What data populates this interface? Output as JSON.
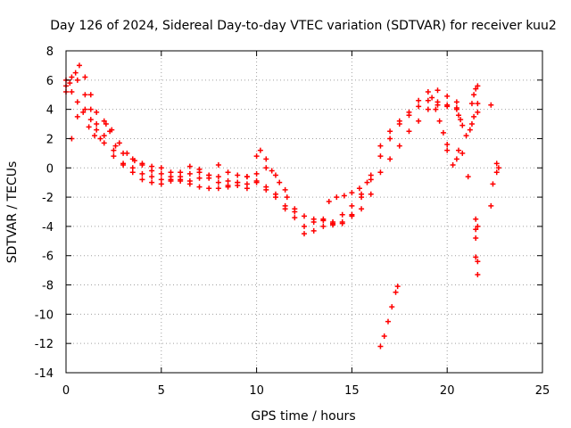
{
  "chart_data": {
    "type": "scatter",
    "title": "Day 126 of 2024, Sidereal Day-to-day VTEC variation (SDTVAR) for receiver kuu2",
    "xlabel": "GPS time / hours",
    "ylabel": "SDTVAR / TECUs",
    "xlim": [
      0,
      25
    ],
    "ylim": [
      -14,
      8
    ],
    "xticks": [
      0,
      5,
      10,
      15,
      20,
      25
    ],
    "yticks": [
      -14,
      -12,
      -10,
      -8,
      -6,
      -4,
      -2,
      0,
      2,
      4,
      6,
      8
    ],
    "grid": true,
    "marker": "+",
    "series_color": "#ff0000",
    "series": [
      {
        "name": "SDTVAR",
        "tracks": [
          [
            [
              0.0,
              5.2
            ],
            [
              0.2,
              5.8
            ],
            [
              0.5,
              6.5
            ],
            [
              0.7,
              7.0
            ],
            [
              1.0,
              6.2
            ],
            [
              1.3,
              5.0
            ],
            [
              1.6,
              3.8
            ],
            [
              2.0,
              3.2
            ],
            [
              2.3,
              2.5
            ],
            [
              2.6,
              1.5
            ],
            [
              3.0,
              1.0
            ],
            [
              3.5,
              0.6
            ],
            [
              4.0,
              0.3
            ],
            [
              4.5,
              0.1
            ],
            [
              5.0,
              0.0
            ],
            [
              5.5,
              -0.3
            ],
            [
              6.0,
              -0.8
            ],
            [
              6.5,
              -0.9
            ],
            [
              7.0,
              -0.7
            ],
            [
              7.5,
              -0.5
            ],
            [
              8.0,
              0.2
            ],
            [
              8.5,
              -0.3
            ],
            [
              9.0,
              -0.5
            ],
            [
              9.5,
              -0.6
            ],
            [
              10.0,
              0.8
            ],
            [
              10.5,
              0.0
            ],
            [
              11.0,
              -0.5
            ],
            [
              11.5,
              -1.5
            ],
            [
              12.0,
              -2.8
            ],
            [
              12.5,
              -3.3
            ],
            [
              13.0,
              -3.5
            ],
            [
              13.5,
              -3.6
            ],
            [
              14.0,
              -3.8
            ],
            [
              14.5,
              -3.7
            ],
            [
              15.0,
              -3.2
            ],
            [
              15.5,
              -2.0
            ],
            [
              16.0,
              -0.5
            ],
            [
              16.5,
              1.5
            ],
            [
              17.0,
              2.5
            ],
            [
              17.5,
              3.2
            ],
            [
              18.0,
              3.8
            ],
            [
              18.5,
              4.6
            ],
            [
              19.0,
              5.2
            ],
            [
              19.5,
              5.3
            ],
            [
              20.0,
              4.9
            ],
            [
              20.5,
              4.5
            ]
          ],
          [
            [
              0.0,
              6.0
            ],
            [
              0.3,
              6.2
            ],
            [
              0.6,
              6.0
            ],
            [
              1.0,
              5.0
            ],
            [
              1.3,
              4.0
            ],
            [
              1.6,
              3.0
            ],
            [
              2.0,
              2.2
            ],
            [
              2.5,
              1.2
            ],
            [
              3.0,
              0.3
            ],
            [
              3.5,
              0.0
            ],
            [
              4.0,
              -0.4
            ],
            [
              4.5,
              -0.6
            ],
            [
              5.0,
              -0.8
            ],
            [
              5.5,
              -0.8
            ],
            [
              6.0,
              -0.9
            ],
            [
              6.5,
              -1.1
            ],
            [
              7.0,
              -1.3
            ],
            [
              7.5,
              -1.4
            ],
            [
              8.0,
              -1.4
            ],
            [
              8.5,
              -1.2
            ],
            [
              9.0,
              -1.0
            ],
            [
              9.5,
              -0.6
            ],
            [
              10.0,
              -0.4
            ],
            [
              10.5,
              -1.5
            ],
            [
              11.0,
              -1.8
            ],
            [
              11.5,
              -2.6
            ],
            [
              12.0,
              -3.4
            ],
            [
              12.5,
              -4.5
            ],
            [
              13.0,
              -4.3
            ],
            [
              13.5,
              -4.0
            ],
            [
              14.0,
              -3.9
            ],
            [
              14.5,
              -3.8
            ],
            [
              15.0,
              -3.3
            ],
            [
              15.5,
              -2.8
            ],
            [
              16.0,
              -1.8
            ],
            [
              16.5,
              -0.3
            ],
            [
              17.0,
              0.6
            ],
            [
              17.5,
              1.5
            ],
            [
              18.0,
              2.5
            ],
            [
              18.5,
              3.2
            ],
            [
              19.0,
              4.0
            ],
            [
              19.5,
              4.3
            ],
            [
              20.0,
              4.2
            ],
            [
              20.5,
              4.0
            ]
          ],
          [
            [
              0.0,
              5.6
            ],
            [
              0.3,
              5.2
            ],
            [
              0.6,
              4.5
            ],
            [
              1.0,
              4.0
            ],
            [
              1.3,
              3.3
            ],
            [
              1.6,
              2.6
            ],
            [
              2.0,
              1.7
            ],
            [
              2.5,
              0.8
            ],
            [
              3.0,
              0.2
            ],
            [
              3.5,
              -0.3
            ],
            [
              4.0,
              -0.8
            ],
            [
              4.5,
              -1.0
            ],
            [
              5.0,
              -1.1
            ],
            [
              5.5,
              -0.9
            ],
            [
              6.0,
              -0.6
            ],
            [
              6.5,
              -0.4
            ],
            [
              7.0,
              -0.3
            ],
            [
              7.5,
              -0.7
            ],
            [
              8.0,
              -1.0
            ],
            [
              8.5,
              -1.3
            ],
            [
              9.0,
              -1.2
            ],
            [
              9.5,
              -1.4
            ],
            [
              10.0,
              -1.0
            ],
            [
              10.5,
              -1.3
            ],
            [
              11.0,
              -2.0
            ],
            [
              11.5,
              -2.8
            ],
            [
              12.0,
              -3.0
            ],
            [
              12.5,
              -4.0
            ],
            [
              13.0,
              -3.7
            ],
            [
              13.5,
              -3.5
            ],
            [
              14.0,
              -3.7
            ],
            [
              14.5,
              -3.2
            ],
            [
              15.0,
              -2.6
            ],
            [
              15.5,
              -1.8
            ],
            [
              16.0,
              -0.8
            ],
            [
              16.5,
              0.8
            ],
            [
              17.0,
              2.0
            ],
            [
              17.5,
              3.0
            ],
            [
              18.0,
              3.6
            ],
            [
              18.5,
              4.2
            ],
            [
              19.0,
              4.6
            ],
            [
              19.5,
              4.5
            ],
            [
              20.0,
              4.3
            ],
            [
              20.5,
              4.1
            ]
          ],
          [
            [
              0.3,
              2.0
            ],
            [
              0.6,
              3.5
            ],
            [
              0.9,
              3.8
            ],
            [
              1.2,
              2.8
            ],
            [
              1.5,
              2.2
            ],
            [
              1.8,
              2.0
            ],
            [
              2.1,
              3.0
            ],
            [
              2.4,
              2.6
            ],
            [
              2.8,
              1.7
            ],
            [
              3.2,
              1.0
            ],
            [
              3.6,
              0.5
            ],
            [
              4.0,
              0.2
            ],
            [
              4.5,
              -0.2
            ],
            [
              5.0,
              -0.4
            ],
            [
              5.5,
              -0.6
            ],
            [
              6.0,
              -0.3
            ],
            [
              6.5,
              0.1
            ],
            [
              7.0,
              -0.1
            ],
            [
              7.5,
              -0.5
            ],
            [
              8.0,
              -0.6
            ],
            [
              8.5,
              -0.9
            ],
            [
              9.0,
              -1.0
            ],
            [
              9.5,
              -1.1
            ],
            [
              10.0,
              -0.9
            ]
          ],
          [
            [
              10.2,
              1.2
            ],
            [
              10.5,
              0.6
            ],
            [
              10.8,
              -0.2
            ],
            [
              11.2,
              -1.0
            ],
            [
              11.6,
              -2.0
            ]
          ],
          [
            [
              13.8,
              -2.3
            ],
            [
              14.2,
              -2.0
            ],
            [
              14.6,
              -1.9
            ],
            [
              15.0,
              -1.7
            ],
            [
              15.4,
              -1.4
            ],
            [
              15.8,
              -1.0
            ]
          ],
          [
            [
              16.5,
              -12.2
            ],
            [
              16.7,
              -11.5
            ],
            [
              16.9,
              -10.5
            ],
            [
              17.1,
              -9.5
            ],
            [
              17.3,
              -8.5
            ],
            [
              17.4,
              -8.1
            ]
          ],
          [
            [
              19.2,
              4.8
            ],
            [
              19.4,
              4.0
            ],
            [
              19.6,
              3.2
            ],
            [
              19.8,
              2.4
            ],
            [
              20.0,
              1.6
            ],
            [
              20.0,
              1.2
            ]
          ],
          [
            [
              20.6,
              3.6
            ],
            [
              20.7,
              3.3
            ],
            [
              20.8,
              2.9
            ],
            [
              20.6,
              1.2
            ],
            [
              20.5,
              0.6
            ],
            [
              20.8,
              1.0
            ],
            [
              20.3,
              0.2
            ],
            [
              21.1,
              -0.6
            ],
            [
              21.0,
              2.2
            ],
            [
              21.2,
              2.6
            ],
            [
              21.3,
              3.0
            ],
            [
              21.4,
              3.5
            ],
            [
              21.3,
              4.4
            ],
            [
              21.4,
              5.0
            ],
            [
              21.5,
              5.4
            ],
            [
              21.6,
              5.6
            ],
            [
              21.6,
              4.4
            ],
            [
              21.6,
              3.8
            ],
            [
              21.5,
              -3.5
            ],
            [
              21.5,
              -4.2
            ],
            [
              21.6,
              -4.0
            ],
            [
              21.5,
              -4.8
            ],
            [
              21.5,
              -6.1
            ],
            [
              21.6,
              -6.4
            ],
            [
              21.6,
              -7.3
            ],
            [
              22.3,
              4.3
            ],
            [
              22.3,
              -2.6
            ],
            [
              22.4,
              -1.1
            ],
            [
              22.6,
              0.3
            ],
            [
              22.7,
              0.0
            ],
            [
              22.6,
              -0.3
            ]
          ]
        ]
      }
    ]
  }
}
